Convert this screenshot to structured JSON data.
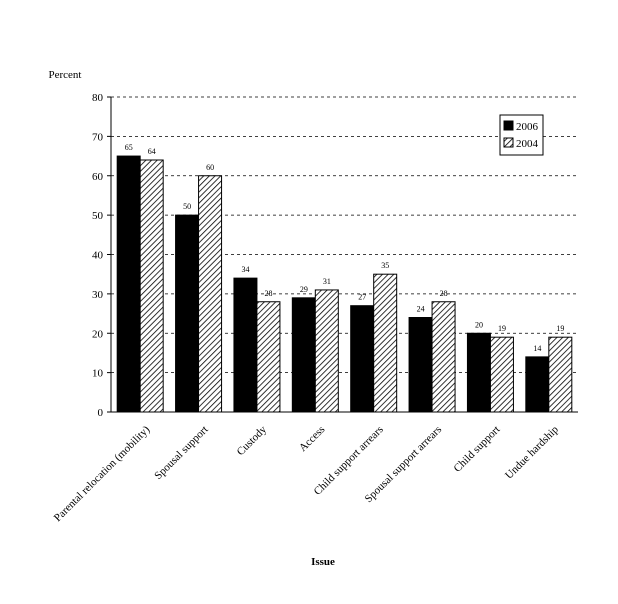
{
  "chart_data": {
    "type": "bar",
    "title": "",
    "ylabel": "Percent",
    "xlabel": "Issue",
    "ylim": [
      0,
      80
    ],
    "yticks": [
      0,
      10,
      20,
      30,
      40,
      50,
      60,
      70,
      80
    ],
    "grid": "horizontal-dashed",
    "legend_position": "top-right",
    "categories": [
      "Parental relocation (mobility)",
      "Spousal support",
      "Custody",
      "Access",
      "Child support arrears",
      "Spousal support arrears",
      "Child support",
      "Undue hardship"
    ],
    "series": [
      {
        "name": "2006",
        "fill": "#000000",
        "pattern": "solid",
        "values": [
          65,
          50,
          34,
          29,
          27,
          24,
          20,
          14
        ]
      },
      {
        "name": "2004",
        "fill": "#ffffff",
        "pattern": "diagonal-hatch",
        "values": [
          64,
          60,
          28,
          31,
          35,
          28,
          19,
          19
        ]
      }
    ]
  }
}
